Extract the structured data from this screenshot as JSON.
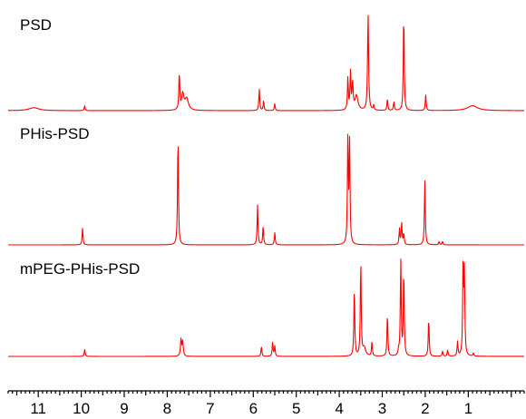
{
  "chart_data": {
    "type": "line",
    "title": "",
    "xlabel": "",
    "ylabel": "",
    "x_axis_reversed": true,
    "xlim": [
      11.7,
      -0.3
    ],
    "x_ticks": [
      11,
      10,
      9,
      8,
      7,
      6,
      5,
      4,
      3,
      2,
      1
    ],
    "minor_tick_step": 0.1,
    "grid": false,
    "legend": "none",
    "line_color": "#ff0000",
    "series": [
      {
        "name": "PSD",
        "peaks": [
          {
            "ppm": 11.1,
            "height": 0.03,
            "width": 0.14
          },
          {
            "ppm": 9.92,
            "height": 0.05,
            "width": 0.012
          },
          {
            "ppm": 7.72,
            "height": 0.38,
            "width": 0.012
          },
          {
            "ppm": 7.64,
            "height": 0.16,
            "width": 0.03
          },
          {
            "ppm": 7.55,
            "height": 0.12,
            "width": 0.05
          },
          {
            "ppm": 5.86,
            "height": 0.22,
            "width": 0.012
          },
          {
            "ppm": 5.76,
            "height": 0.1,
            "width": 0.012
          },
          {
            "ppm": 5.5,
            "height": 0.07,
            "width": 0.012
          },
          {
            "ppm": 3.8,
            "height": 0.33,
            "width": 0.012
          },
          {
            "ppm": 3.74,
            "height": 0.38,
            "width": 0.012
          },
          {
            "ppm": 3.69,
            "height": 0.28,
            "width": 0.015
          },
          {
            "ppm": 3.6,
            "height": 0.15,
            "width": 0.04
          },
          {
            "ppm": 3.33,
            "height": 1.0,
            "width": 0.014
          },
          {
            "ppm": 3.2,
            "height": 0.05,
            "width": 0.012
          },
          {
            "ppm": 2.88,
            "height": 0.12,
            "width": 0.012
          },
          {
            "ppm": 2.73,
            "height": 0.09,
            "width": 0.012
          },
          {
            "ppm": 2.5,
            "height": 1.0,
            "width": 0.012
          },
          {
            "ppm": 1.99,
            "height": 0.16,
            "width": 0.012
          },
          {
            "ppm": 0.9,
            "height": 0.05,
            "width": 0.14
          }
        ]
      },
      {
        "name": "PHis-PSD",
        "peaks": [
          {
            "ppm": 9.97,
            "height": 0.15,
            "width": 0.012
          },
          {
            "ppm": 7.75,
            "height": 1.0,
            "width": 0.012
          },
          {
            "ppm": 5.9,
            "height": 0.36,
            "width": 0.012
          },
          {
            "ppm": 5.77,
            "height": 0.17,
            "width": 0.012
          },
          {
            "ppm": 5.5,
            "height": 0.11,
            "width": 0.012
          },
          {
            "ppm": 3.8,
            "height": 0.98,
            "width": 0.012
          },
          {
            "ppm": 3.76,
            "height": 0.9,
            "width": 0.012
          },
          {
            "ppm": 2.6,
            "height": 0.14,
            "width": 0.012
          },
          {
            "ppm": 2.55,
            "height": 0.2,
            "width": 0.012
          },
          {
            "ppm": 2.5,
            "height": 0.1,
            "width": 0.012
          },
          {
            "ppm": 2.01,
            "height": 0.58,
            "width": 0.012
          },
          {
            "ppm": 1.68,
            "height": 0.03,
            "width": 0.012
          },
          {
            "ppm": 1.6,
            "height": 0.03,
            "width": 0.012
          }
        ]
      },
      {
        "name": "mPEG-PHis-PSD",
        "peaks": [
          {
            "ppm": 9.92,
            "height": 0.07,
            "width": 0.012
          },
          {
            "ppm": 7.68,
            "height": 0.17,
            "width": 0.015
          },
          {
            "ppm": 7.64,
            "height": 0.14,
            "width": 0.015
          },
          {
            "ppm": 5.81,
            "height": 0.1,
            "width": 0.012
          },
          {
            "ppm": 5.55,
            "height": 0.14,
            "width": 0.012
          },
          {
            "ppm": 5.5,
            "height": 0.1,
            "width": 0.012
          },
          {
            "ppm": 3.65,
            "height": 0.68,
            "width": 0.012
          },
          {
            "ppm": 3.5,
            "height": 0.95,
            "width": 0.012
          },
          {
            "ppm": 3.42,
            "height": 0.08,
            "width": 0.04
          },
          {
            "ppm": 3.24,
            "height": 0.14,
            "width": 0.012
          },
          {
            "ppm": 2.88,
            "height": 0.42,
            "width": 0.012
          },
          {
            "ppm": 2.62,
            "height": 0.05,
            "width": 0.012
          },
          {
            "ppm": 2.57,
            "height": 0.95,
            "width": 0.012
          },
          {
            "ppm": 2.5,
            "height": 0.85,
            "width": 0.012
          },
          {
            "ppm": 1.92,
            "height": 0.38,
            "width": 0.012
          },
          {
            "ppm": 1.6,
            "height": 0.05,
            "width": 0.012
          },
          {
            "ppm": 1.48,
            "height": 0.06,
            "width": 0.012
          },
          {
            "ppm": 1.25,
            "height": 0.14,
            "width": 0.012
          },
          {
            "ppm": 1.12,
            "height": 0.92,
            "width": 0.012
          },
          {
            "ppm": 1.09,
            "height": 0.8,
            "width": 0.012
          },
          {
            "ppm": 0.88,
            "height": 0.03,
            "width": 0.012
          }
        ]
      }
    ]
  }
}
